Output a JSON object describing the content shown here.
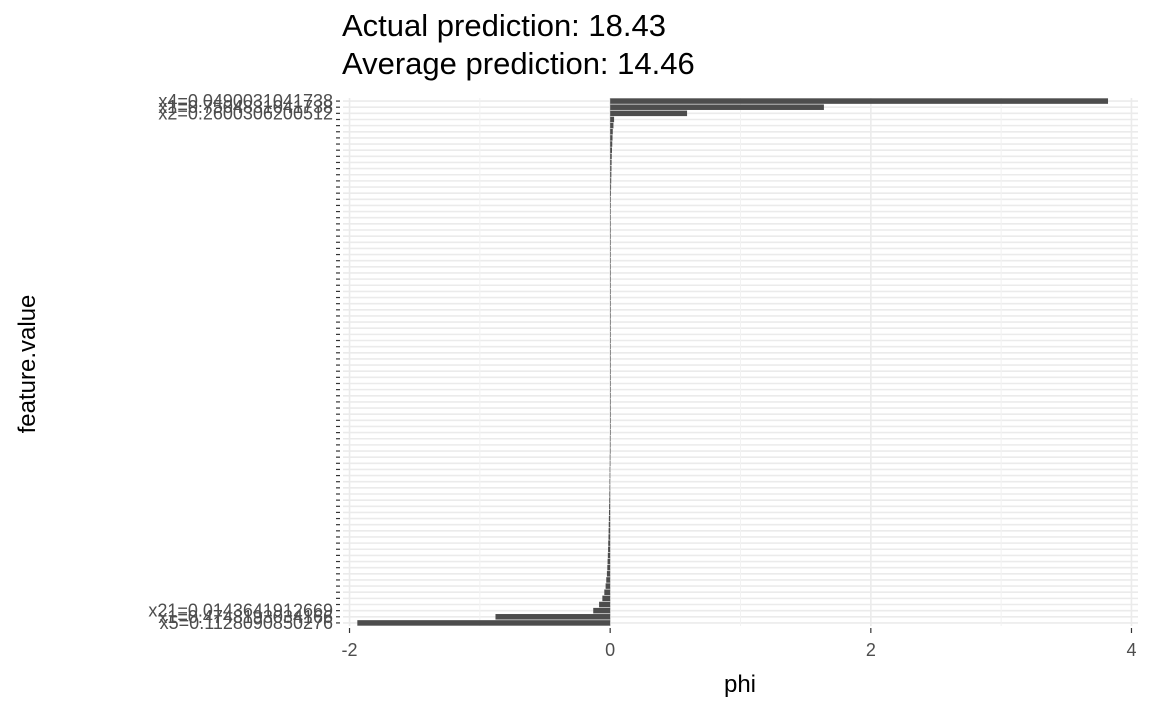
{
  "chart_data": {
    "type": "bar",
    "orientation": "horizontal",
    "title": "Actual prediction: 18.43",
    "subtitle": "Average prediction: 14.46",
    "xlabel": "phi",
    "ylabel": "feature.value",
    "xlim": [
      -2.05,
      4.05
    ],
    "xticks": [
      -2,
      0,
      2,
      4
    ],
    "xtick_labels": [
      "-2",
      "0",
      "2",
      "4"
    ],
    "grid": true,
    "bar_color": "#4d4d4d",
    "grid_color": "#ebebeb",
    "top_labels": [
      {
        "rank": 1,
        "label": "x4=0.0490031041738",
        "value": 3.82
      },
      {
        "rank": 2,
        "label": "x1=0.7504831041738",
        "value": 1.64
      },
      {
        "rank": 3,
        "label": "x2=0.2600306200512",
        "value": 0.59
      }
    ],
    "bottom_labels": [
      {
        "rank": -3,
        "label": "x21=0.0143641912669",
        "value": -0.13
      },
      {
        "rank": -2,
        "label": "x1=0.4748193034166",
        "value": -0.88
      },
      {
        "rank": -1,
        "label": "x5=0.1128090850276",
        "value": -1.94
      }
    ],
    "values": [
      3.82,
      1.64,
      0.59,
      0.03,
      0.025,
      0.02,
      0.018,
      0.016,
      0.014,
      0.012,
      0.011,
      0.01,
      0.009,
      0.008,
      0.007,
      0.006,
      0.005,
      0.005,
      0.004,
      0.004,
      0.003,
      0.003,
      0.002,
      0.002,
      0.002,
      0.001,
      0.001,
      0.001,
      0.001,
      0.0,
      0.0,
      0.0,
      0.0,
      0.0,
      0.0,
      0.0,
      0.0,
      0.0,
      0.0,
      0.0,
      0.0,
      0.0,
      0.0,
      0.0,
      0.0,
      0.0,
      0.0,
      0.0,
      0.0,
      0.0,
      0.0,
      -0.001,
      -0.001,
      -0.001,
      -0.001,
      -0.002,
      -0.002,
      -0.002,
      -0.003,
      -0.003,
      -0.004,
      -0.004,
      -0.005,
      -0.005,
      -0.006,
      -0.007,
      -0.008,
      -0.009,
      -0.01,
      -0.011,
      -0.012,
      -0.013,
      -0.015,
      -0.016,
      -0.018,
      -0.02,
      -0.022,
      -0.025,
      -0.03,
      -0.035,
      -0.045,
      -0.06,
      -0.085,
      -0.13,
      -0.88,
      -1.94
    ]
  }
}
